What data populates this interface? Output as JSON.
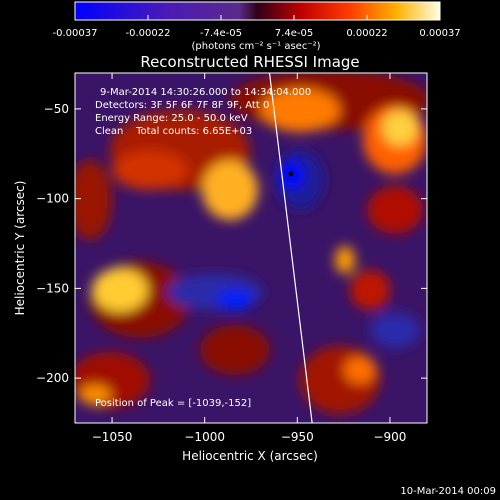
{
  "colorbar": {
    "ticks": [
      "-0.00037",
      "-0.00022",
      "-7.4e-05",
      "7.4e-05",
      "0.00022",
      "0.00037"
    ],
    "unit_label": "(photons cm⁻² s⁻¹ asec⁻²)",
    "range": [
      -0.00037,
      0.00037
    ]
  },
  "chart_data": {
    "type": "heatmap",
    "title": "Reconstructed RHESSI Image",
    "xlabel": "Heliocentric X (arcsec)",
    "ylabel": "Heliocentric Y (arcsec)",
    "xlim": [
      -1070,
      -880
    ],
    "ylim": [
      -225,
      -30
    ],
    "x_ticks": [
      -1050,
      -1000,
      -950,
      -900
    ],
    "y_ticks": [
      -50,
      -100,
      -150,
      -200
    ],
    "x_tick_labels": [
      "−1050",
      "−1000",
      "−950",
      "−900"
    ],
    "y_tick_labels": [
      "−50",
      "−100",
      "−150",
      "−200"
    ],
    "annotations": [
      "9-Mar-2014 14:30:26.000 to 14:34:04.000",
      "Detectors: 3F 5F 6F 7F 8F 9F, Att 0",
      "Energy Range: 25.0 - 50.0 keV",
      "Clean    Total counts: 6.65E+03"
    ],
    "peak_label": "Position of Peak = [-1039,-152]",
    "peak": [
      -1039,
      -152
    ],
    "limb_line": [
      [
        -965,
        -30
      ],
      [
        -942,
        -225
      ]
    ]
  },
  "footer": {
    "timestamp": "10-Mar-2014 00:09"
  }
}
